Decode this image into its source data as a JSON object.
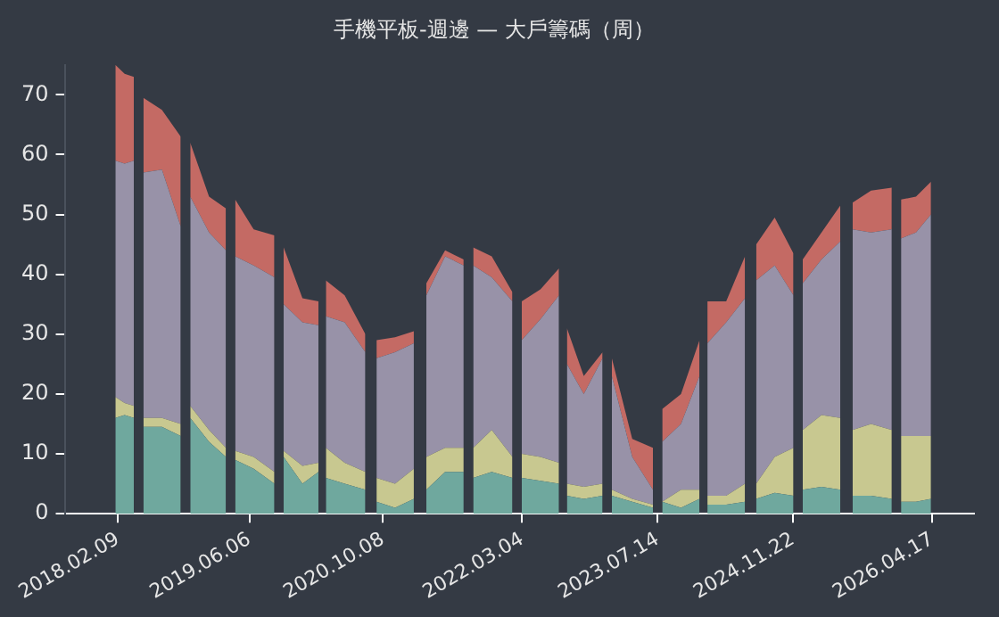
{
  "chart_data": {
    "type": "area",
    "title": "手機平板-週邊 — 大戶籌碼（周）",
    "stacked": true,
    "grid": false,
    "legend": false,
    "x": [
      "2018-01-30",
      "2018-03-05",
      "2018-04-08",
      "2018-04-25",
      "2018-05-13",
      "2018-07-20",
      "2018-09-27",
      "2018-10-17",
      "2018-11-01",
      "2019-01-09",
      "2019-03-12",
      "2019-03-29",
      "2019-04-15",
      "2019-06-22",
      "2019-09-06",
      "2019-09-23",
      "2019-10-10",
      "2019-12-18",
      "2020-02-15",
      "2020-02-29",
      "2020-03-13",
      "2020-05-21",
      "2020-08-05",
      "2020-08-25",
      "2020-09-15",
      "2020-11-22",
      "2021-01-30",
      "2021-02-16",
      "2021-03-17",
      "2021-05-25",
      "2021-08-01",
      "2021-08-18",
      "2021-09-05",
      "2021-11-12",
      "2022-01-27",
      "2022-02-13",
      "2022-03-02",
      "2022-05-10",
      "2022-07-17",
      "2022-08-03",
      "2022-08-15",
      "2022-10-16",
      "2022-12-24",
      "2023-01-10",
      "2023-01-27",
      "2023-04-12",
      "2023-06-27",
      "2023-07-14",
      "2023-07-31",
      "2023-10-08",
      "2023-12-15",
      "2024-01-02",
      "2024-01-13",
      "2024-03-22",
      "2024-05-30",
      "2024-06-19",
      "2024-07-10",
      "2024-09-16",
      "2024-11-24",
      "2024-12-11",
      "2024-12-28",
      "2025-03-07",
      "2025-05-15",
      "2025-06-01",
      "2025-06-29",
      "2025-09-05",
      "2025-11-20",
      "2025-12-07",
      "2025-12-24",
      "2026-02-17",
      "2026-04-13"
    ],
    "series": [
      {
        "color": "#6fa89e",
        "values": [
          16,
          16.5,
          16,
          null,
          14.5,
          14.5,
          13,
          null,
          16,
          12,
          9.5,
          null,
          9,
          7.5,
          5,
          null,
          9.5,
          5,
          7,
          null,
          6,
          5,
          4,
          null,
          2,
          1,
          2.5,
          null,
          4,
          7,
          7,
          null,
          6,
          7,
          6,
          null,
          6,
          5.5,
          5,
          null,
          3,
          2.5,
          3,
          null,
          3,
          2,
          1,
          null,
          2,
          1,
          2.5,
          null,
          1.5,
          1.5,
          2,
          null,
          2.5,
          3.5,
          3,
          null,
          4,
          4.5,
          4,
          null,
          3,
          3,
          2.5,
          null,
          2,
          2,
          2.5
        ]
      },
      {
        "color": "#c8c890",
        "values": [
          3.5,
          2,
          2,
          null,
          1.5,
          1.5,
          2,
          null,
          2,
          2,
          1.5,
          null,
          1.5,
          2,
          2,
          null,
          1,
          3,
          1.5,
          null,
          5,
          3.5,
          3,
          null,
          4,
          4,
          5,
          null,
          5.5,
          4,
          4,
          null,
          5,
          7,
          3.5,
          null,
          4,
          4,
          3.5,
          null,
          2,
          2,
          2,
          null,
          1,
          0.5,
          0.5,
          null,
          0,
          3,
          1.5,
          null,
          1.5,
          1.5,
          3,
          null,
          2.5,
          6,
          8,
          null,
          10,
          12,
          12,
          null,
          11,
          12,
          11.5,
          null,
          11,
          11,
          10.5
        ]
      },
      {
        "color": "#9892a8",
        "values": [
          39.5,
          40,
          41,
          null,
          41,
          41.5,
          33,
          null,
          35,
          33,
          33,
          null,
          32.5,
          32,
          32.5,
          null,
          24.5,
          24,
          23,
          null,
          22,
          23.5,
          20,
          null,
          20,
          22,
          21,
          null,
          27,
          32,
          30.5,
          null,
          30.5,
          25.5,
          26,
          null,
          19,
          23,
          28,
          null,
          20,
          15.5,
          21,
          null,
          19,
          7,
          2.5,
          null,
          10,
          11,
          19,
          null,
          25.5,
          29,
          31,
          null,
          34,
          32,
          25.5,
          null,
          24.5,
          26,
          29.5,
          null,
          33.5,
          32,
          33.5,
          null,
          33,
          34,
          37
        ]
      },
      {
        "color": "#c46a64",
        "values": [
          16,
          15,
          14,
          null,
          12.5,
          10,
          15,
          null,
          9,
          6,
          7,
          null,
          9.5,
          6,
          7,
          null,
          9.5,
          4,
          4,
          null,
          6,
          4.5,
          3,
          null,
          3,
          2.5,
          2,
          null,
          2,
          1,
          1,
          null,
          3,
          3.5,
          1.5,
          null,
          6.5,
          5,
          4.5,
          null,
          6,
          3,
          1,
          null,
          3,
          3,
          7,
          null,
          5.5,
          5,
          6,
          null,
          7,
          3.5,
          7,
          null,
          6,
          8,
          7,
          null,
          4,
          4.5,
          6,
          null,
          4.5,
          7,
          7,
          null,
          6.5,
          6,
          5.5
        ]
      }
    ],
    "xlim": [
      "2017-07-28",
      "2026-09-18"
    ],
    "xticks": [
      {
        "value": "2018-02-09",
        "label": "2018.02.09"
      },
      {
        "value": "2019-06-06",
        "label": "2019.06.06"
      },
      {
        "value": "2020-10-08",
        "label": "2020.10.08"
      },
      {
        "value": "2022-03-04",
        "label": "2022.03.04"
      },
      {
        "value": "2023-07-14",
        "label": "2023.07.14"
      },
      {
        "value": "2024-11-22",
        "label": "2024.11.22"
      },
      {
        "value": "2026-04-17",
        "label": "2026.04.17"
      }
    ],
    "ylim": [
      0,
      75
    ],
    "yticks": [
      0,
      10,
      20,
      30,
      40,
      50,
      60,
      70
    ]
  }
}
